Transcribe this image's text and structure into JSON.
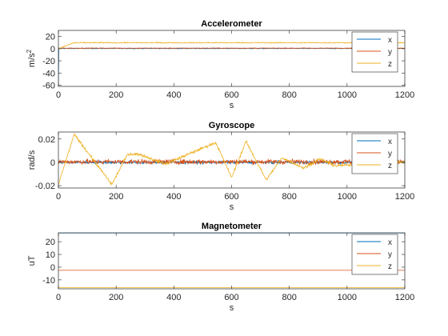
{
  "chart_data": [
    {
      "type": "line",
      "title": "Accelerometer",
      "xlabel": "s",
      "ylabel": "m/s^2",
      "xlim": [
        0,
        1200
      ],
      "ylim": [
        -62,
        30
      ],
      "x_ticks": [
        0,
        200,
        400,
        600,
        800,
        1000,
        1200
      ],
      "y_ticks": [
        -60,
        -40,
        -20,
        0,
        20
      ],
      "grid": false,
      "legend_placement": "top-right",
      "series": [
        {
          "name": "x",
          "color": "#0072BD",
          "shape": "start-dip-flat",
          "base": 0.3,
          "noise": 0.6,
          "start_value": -60
        },
        {
          "name": "y",
          "color": "#D95319",
          "shape": "flat-noisy",
          "base": 0.8,
          "noise": 0.6
        },
        {
          "name": "z",
          "color": "#EDB120",
          "shape": "step-up",
          "start_value": 0,
          "step_at": 55,
          "base": 9.8,
          "noise": 0.8
        }
      ]
    },
    {
      "type": "line",
      "title": "Gyroscope",
      "xlabel": "s",
      "ylabel": "rad/s",
      "xlim": [
        0,
        1200
      ],
      "ylim": [
        -0.022,
        0.026
      ],
      "x_ticks": [
        0,
        200,
        400,
        600,
        800,
        1000,
        1200
      ],
      "y_ticks": [
        -0.02,
        0,
        0.02
      ],
      "y_tick_labels": [
        "-0.02",
        "0",
        "0.02"
      ],
      "grid": false,
      "legend_placement": "top-right",
      "series": [
        {
          "name": "x",
          "color": "#0072BD",
          "shape": "flat-noisy",
          "base": 0.0,
          "noise": 0.0013
        },
        {
          "name": "y",
          "color": "#D95319",
          "shape": "flat-noisy",
          "base": 0.0005,
          "noise": 0.0022
        },
        {
          "name": "z",
          "color": "#EDB120",
          "shape": "piecewise",
          "noise": 0.0012,
          "points": [
            [
              0,
              -0.019
            ],
            [
              55,
              0.024
            ],
            [
              185,
              -0.019
            ],
            [
              240,
              0.007
            ],
            [
              280,
              0.007
            ],
            [
              370,
              -0.0015
            ],
            [
              545,
              0.017
            ],
            [
              600,
              -0.013
            ],
            [
              650,
              0.018
            ],
            [
              720,
              -0.015
            ],
            [
              775,
              0.004
            ],
            [
              850,
              -0.005
            ],
            [
              905,
              0.003
            ],
            [
              960,
              -0.003
            ],
            [
              1200,
              0.0005
            ]
          ]
        }
      ]
    },
    {
      "type": "line",
      "title": "Magnetometer",
      "xlabel": "s",
      "ylabel": "uT",
      "xlim": [
        0,
        1200
      ],
      "ylim": [
        -17,
        27
      ],
      "x_ticks": [
        0,
        200,
        400,
        600,
        800,
        1000,
        1200
      ],
      "y_ticks": [
        -10,
        0,
        10,
        20
      ],
      "grid": false,
      "legend_placement": "top-right",
      "series": [
        {
          "name": "x",
          "color": "#0072BD",
          "shape": "flat",
          "base": 26.9
        },
        {
          "name": "y",
          "color": "#D95319",
          "shape": "flat",
          "base": -2.5
        },
        {
          "name": "z",
          "color": "#EDB120",
          "shape": "flat",
          "base": -16.0
        }
      ]
    }
  ]
}
